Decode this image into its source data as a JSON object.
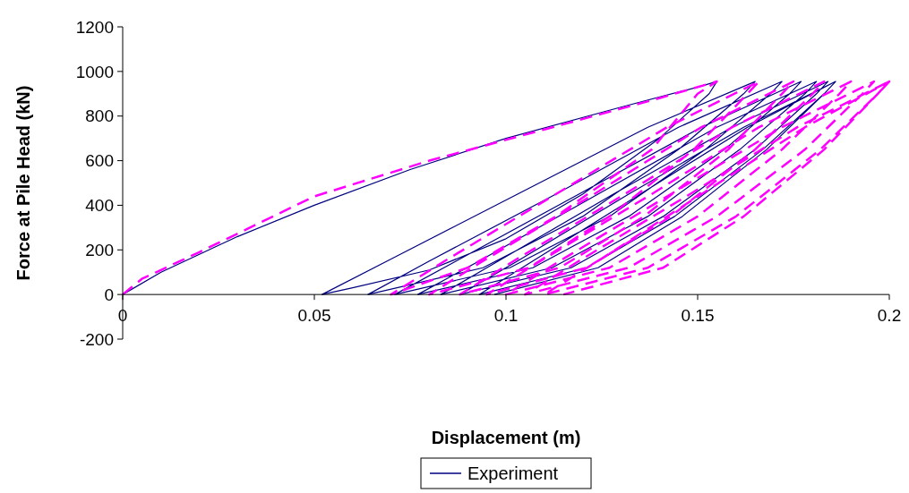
{
  "chart_data": {
    "type": "line",
    "xlabel": "Displacement (m)",
    "ylabel": "Force at Pile Head (kN)",
    "xlim": [
      0,
      0.2
    ],
    "xticks": [
      0,
      0.05,
      0.1,
      0.15,
      0.2
    ],
    "ylim": [
      -200,
      1200
    ],
    "yticks": [
      -200,
      0,
      200,
      400,
      600,
      800,
      1000,
      1200
    ],
    "grid": false,
    "legend": "bottom",
    "series": [
      {
        "name": "Experiment",
        "color": "#000080",
        "line_style": "solid",
        "x": [
          0,
          0.01,
          0.03,
          0.05,
          0.075,
          0.1,
          0.13,
          0.15,
          0.155,
          0.153,
          0.14,
          0.12,
          0.1,
          0.08,
          0.06,
          0.052,
          0.069,
          0.103,
          0.137,
          0.165,
          0.162,
          0.145,
          0.12,
          0.094,
          0.064,
          0.08,
          0.113,
          0.145,
          0.172,
          0.169,
          0.152,
          0.127,
          0.101,
          0.071,
          0.087,
          0.119,
          0.151,
          0.177,
          0.174,
          0.157,
          0.132,
          0.107,
          0.077,
          0.093,
          0.124,
          0.155,
          0.181,
          0.178,
          0.161,
          0.137,
          0.112,
          0.083,
          0.098,
          0.128,
          0.159,
          0.184,
          0.181,
          0.165,
          0.141,
          0.117,
          0.088,
          0.103,
          0.132,
          0.162,
          0.186,
          0.183,
          0.167,
          0.144,
          0.121,
          0.093,
          0.107,
          0.135,
          0.163,
          0.186,
          0.183,
          0.168,
          0.146,
          0.124,
          0.097
        ],
        "values": [
          0,
          100,
          260,
          400,
          560,
          700,
          840,
          930,
          955,
          900,
          700,
          450,
          250,
          110,
          30,
          0,
          150,
          450,
          750,
          955,
          900,
          650,
          350,
          120,
          0,
          150,
          450,
          750,
          955,
          900,
          650,
          350,
          120,
          0,
          150,
          450,
          750,
          955,
          900,
          650,
          350,
          120,
          0,
          150,
          450,
          750,
          955,
          900,
          650,
          350,
          120,
          0,
          150,
          450,
          750,
          955,
          900,
          650,
          350,
          120,
          0,
          150,
          450,
          750,
          955,
          900,
          650,
          350,
          120,
          0,
          150,
          450,
          750,
          955,
          900,
          650,
          350,
          120,
          0
        ]
      },
      {
        "color": "#ff00ff",
        "line_style": "dashed",
        "x": [
          0,
          0.005,
          0.02,
          0.05,
          0.08,
          0.11,
          0.14,
          0.155,
          0.15,
          0.138,
          0.113,
          0.09,
          0.07,
          0.084,
          0.113,
          0.142,
          0.166,
          0.163,
          0.149,
          0.127,
          0.106,
          0.08,
          0.094,
          0.123,
          0.151,
          0.175,
          0.172,
          0.158,
          0.136,
          0.114,
          0.088,
          0.102,
          0.131,
          0.159,
          0.183,
          0.18,
          0.165,
          0.143,
          0.121,
          0.095,
          0.109,
          0.138,
          0.166,
          0.19,
          0.187,
          0.172,
          0.15,
          0.127,
          0.1,
          0.114,
          0.143,
          0.172,
          0.196,
          0.193,
          0.178,
          0.155,
          0.132,
          0.105,
          0.119,
          0.148,
          0.176,
          0.2,
          0.197,
          0.182,
          0.16,
          0.137,
          0.11,
          0.124,
          0.151,
          0.178,
          0.2,
          0.197,
          0.183,
          0.162,
          0.141,
          0.115
        ],
        "values": [
          0,
          70,
          190,
          440,
          600,
          740,
          880,
          955,
          900,
          650,
          350,
          120,
          0,
          150,
          450,
          750,
          955,
          900,
          650,
          350,
          120,
          0,
          150,
          450,
          750,
          955,
          900,
          650,
          350,
          120,
          0,
          150,
          450,
          750,
          955,
          900,
          650,
          350,
          120,
          0,
          150,
          450,
          750,
          955,
          900,
          650,
          350,
          120,
          0,
          150,
          450,
          750,
          955,
          900,
          650,
          350,
          120,
          0,
          150,
          450,
          750,
          955,
          900,
          650,
          350,
          120,
          0,
          150,
          450,
          750,
          955,
          900,
          650,
          350,
          120,
          0
        ]
      }
    ]
  }
}
